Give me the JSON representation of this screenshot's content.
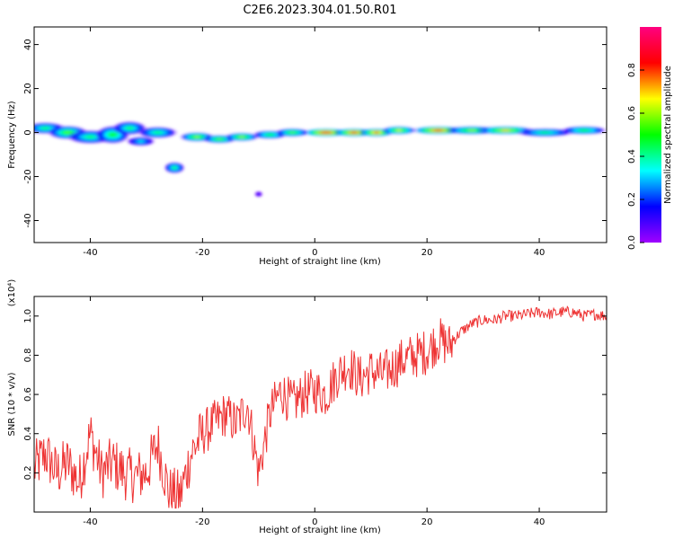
{
  "title": "C2E6.2023.304.01.50.R01",
  "chart_data": [
    {
      "type": "heatmap",
      "xlabel": "Height of straight line (km)",
      "ylabel": "Frequency (Hz)",
      "xlim": [
        -50,
        52
      ],
      "ylim": [
        -50,
        48
      ],
      "xticks": [
        -40,
        -20,
        0,
        20,
        40
      ],
      "yticks": [
        -40,
        -20,
        0,
        20,
        40
      ],
      "colorbar": {
        "label": "Normalized spectral amplitude",
        "range": [
          0,
          1
        ],
        "ticks": [
          "0.0",
          "0.2",
          "0.4",
          "0.6",
          "0.8"
        ],
        "colors": [
          "#a000ff",
          "#0000ff",
          "#00ffff",
          "#00ff00",
          "#ffff00",
          "#ff0000",
          "#ff0080"
        ]
      },
      "blobs": [
        {
          "x": -48,
          "y": 2,
          "w": 3.5,
          "h": 2.5,
          "v": 0.45
        },
        {
          "x": -44,
          "y": 0,
          "w": 3.5,
          "h": 3,
          "v": 0.55
        },
        {
          "x": -40,
          "y": -2,
          "w": 4,
          "h": 3,
          "v": 0.45
        },
        {
          "x": -36,
          "y": -1,
          "w": 3,
          "h": 4,
          "v": 0.5
        },
        {
          "x": -33,
          "y": 2,
          "w": 3,
          "h": 3,
          "v": 0.45
        },
        {
          "x": -31,
          "y": -4,
          "w": 2.5,
          "h": 2,
          "v": 0.35
        },
        {
          "x": -28,
          "y": 0,
          "w": 3.5,
          "h": 2.5,
          "v": 0.45
        },
        {
          "x": -25,
          "y": -16,
          "w": 1.8,
          "h": 2.5,
          "v": 0.45
        },
        {
          "x": -21,
          "y": -2,
          "w": 3,
          "h": 2,
          "v": 0.6
        },
        {
          "x": -17,
          "y": -3,
          "w": 3,
          "h": 1.8,
          "v": 0.55
        },
        {
          "x": -13,
          "y": -2,
          "w": 3,
          "h": 1.8,
          "v": 0.6
        },
        {
          "x": -10,
          "y": -28,
          "w": 0.7,
          "h": 1.2,
          "v": 0.15
        },
        {
          "x": -8,
          "y": -1,
          "w": 3,
          "h": 1.8,
          "v": 0.5
        },
        {
          "x": -4,
          "y": 0,
          "w": 3,
          "h": 1.8,
          "v": 0.55
        },
        {
          "x": 2,
          "y": 0,
          "w": 4,
          "h": 1.8,
          "v": 0.9
        },
        {
          "x": 7,
          "y": 0,
          "w": 3.5,
          "h": 1.8,
          "v": 0.85
        },
        {
          "x": 11,
          "y": 0,
          "w": 3,
          "h": 1.8,
          "v": 0.8
        },
        {
          "x": 15,
          "y": 1,
          "w": 3,
          "h": 1.8,
          "v": 0.65
        },
        {
          "x": 22,
          "y": 1,
          "w": 4.5,
          "h": 1.8,
          "v": 0.85
        },
        {
          "x": 28,
          "y": 1,
          "w": 4.5,
          "h": 1.8,
          "v": 0.6
        },
        {
          "x": 34,
          "y": 1,
          "w": 5,
          "h": 1.8,
          "v": 0.7
        },
        {
          "x": 41,
          "y": 0,
          "w": 5,
          "h": 1.8,
          "v": 0.45
        },
        {
          "x": 48,
          "y": 1,
          "w": 4,
          "h": 1.8,
          "v": 0.5
        }
      ]
    },
    {
      "type": "line",
      "xlabel": "Height of straight line (km)",
      "ylabel": "SNR (10 * v/v)",
      "y_multiplier": "(x10⁴)",
      "xlim": [
        -50,
        52
      ],
      "ylim": [
        0,
        1.1
      ],
      "xticks": [
        -40,
        -20,
        0,
        20,
        40
      ],
      "yticks": [
        0.2,
        0.4,
        0.6,
        0.8,
        1.0
      ],
      "ytick_labels": [
        "0.2",
        "0.4",
        "0.6",
        "0.8",
        "1.0"
      ],
      "color": "#ee3333",
      "x": [
        -50,
        -48,
        -46,
        -44,
        -42,
        -40,
        -38,
        -36,
        -34,
        -32,
        -30,
        -28,
        -26,
        -24,
        -22,
        -20,
        -18,
        -16,
        -14,
        -12,
        -10,
        -8,
        -6,
        -4,
        -2,
        0,
        2,
        4,
        6,
        8,
        10,
        12,
        14,
        16,
        18,
        20,
        22,
        24,
        26,
        28,
        30,
        32,
        34,
        36,
        38,
        40,
        42,
        44,
        46,
        48,
        50,
        52
      ],
      "y": [
        0.22,
        0.3,
        0.2,
        0.25,
        0.15,
        0.4,
        0.2,
        0.25,
        0.2,
        0.18,
        0.2,
        0.35,
        0.1,
        0.08,
        0.3,
        0.4,
        0.45,
        0.5,
        0.45,
        0.55,
        0.2,
        0.5,
        0.62,
        0.55,
        0.6,
        0.62,
        0.6,
        0.7,
        0.75,
        0.68,
        0.72,
        0.7,
        0.74,
        0.78,
        0.8,
        0.82,
        0.88,
        0.85,
        0.92,
        0.96,
        0.98,
        0.98,
        1.0,
        1.0,
        1.01,
        1.02,
        1.01,
        1.02,
        1.02,
        1.0,
        1.01,
        1.0
      ]
    }
  ]
}
